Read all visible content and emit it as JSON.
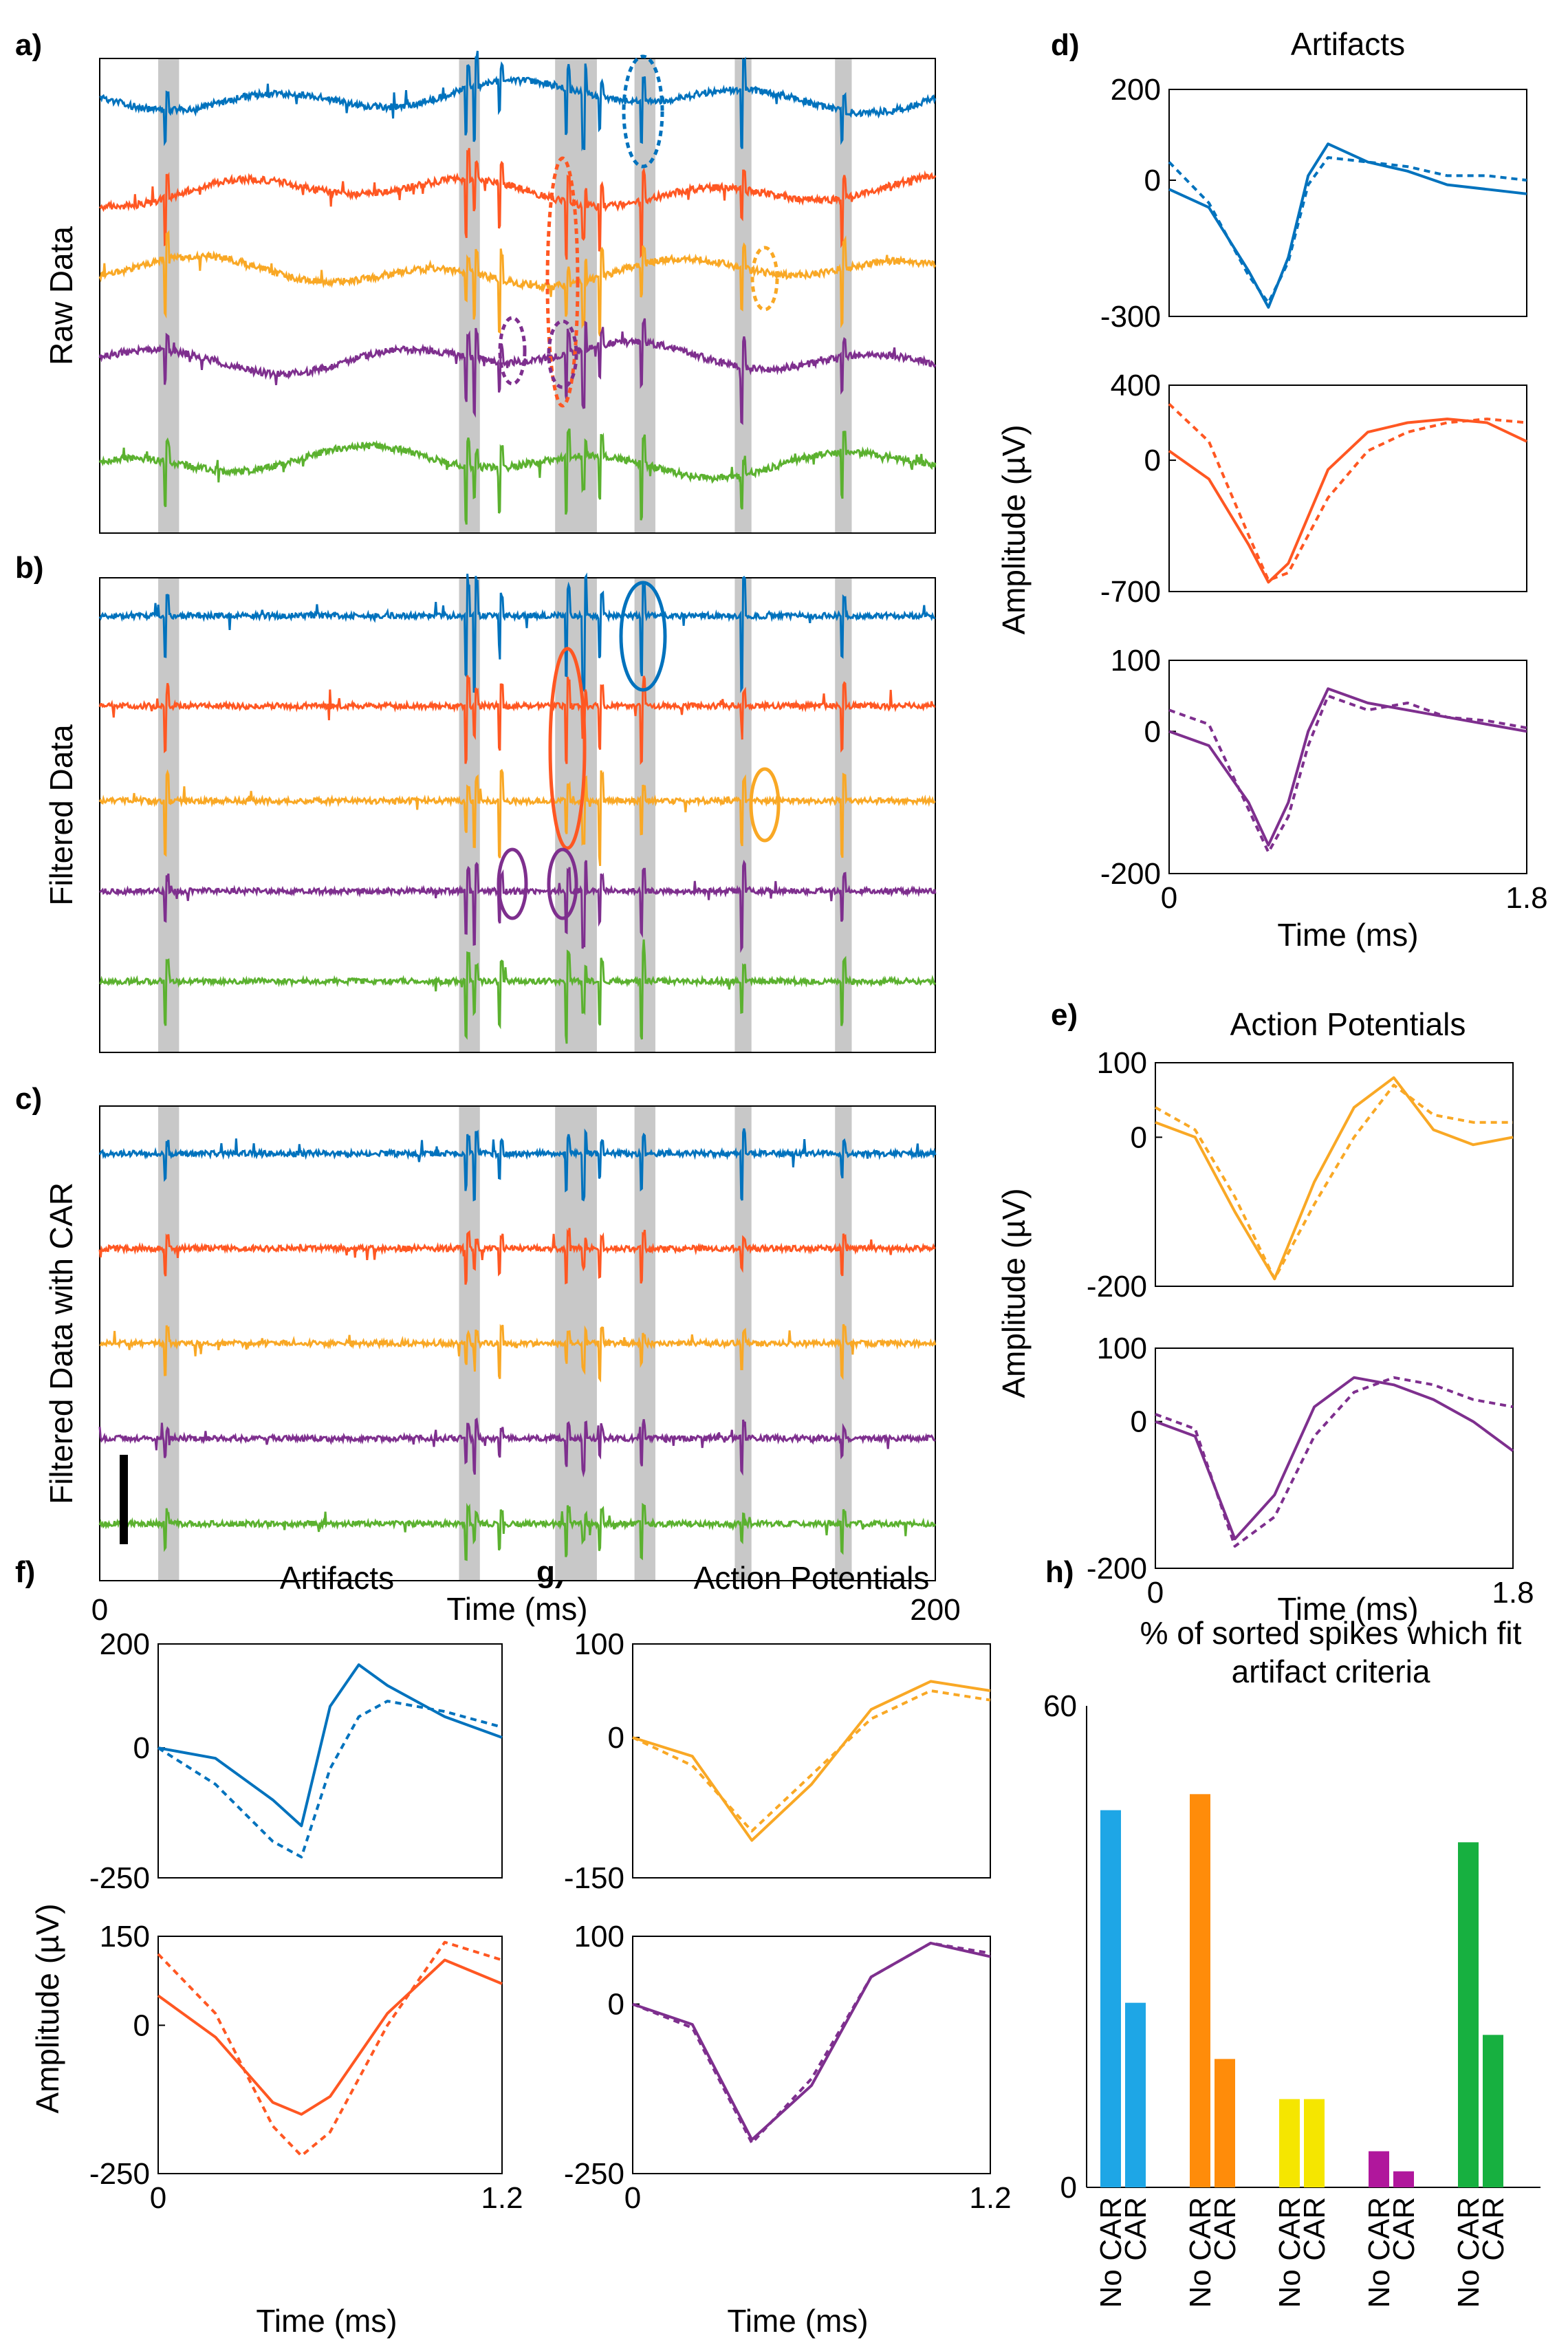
{
  "figure": {
    "panel_letters": [
      "a)",
      "b)",
      "c)",
      "d)",
      "e)",
      "f)",
      "g)",
      "h)"
    ],
    "time_axis": {
      "label": "Time (ms)",
      "min": "0",
      "max": "200"
    },
    "panel_ylabels": {
      "a": "Raw Data",
      "b": "Filtered Data",
      "c": "Filtered Data with CAR"
    },
    "amplitude_label": "Amplitude (µV)",
    "titles": {
      "d": "Artifacts",
      "e": "Action Potentials",
      "f": "Artifacts",
      "g": "Action Potentials",
      "h": "% of sorted spikes which fit artifact criteria"
    },
    "waveform_time_label": "Time (ms)"
  },
  "colors": {
    "blue": "#0072bd",
    "orange": "#ff5722",
    "yellow": "#f9a825",
    "purple": "#7e2f8e",
    "green": "#5bb12f",
    "shade": "#c8c8c8"
  },
  "chart_data": [
    {
      "id": "traces",
      "type": "line",
      "panels": [
        "a",
        "b",
        "c"
      ],
      "xlabel": "Time (ms)",
      "xlim": [
        0,
        200
      ],
      "channels": [
        "blue",
        "orange",
        "yellow",
        "purple",
        "green"
      ],
      "shaded_intervals_ms": [
        [
          14,
          19
        ],
        [
          86,
          91
        ],
        [
          109,
          119
        ],
        [
          128,
          133
        ],
        [
          152,
          156
        ],
        [
          176,
          180
        ]
      ],
      "scale_bar": true
    },
    {
      "id": "d",
      "type": "line",
      "title": "Artifacts",
      "xlabel": "Time (ms)",
      "ylabel": "Amplitude (µV)",
      "xlim": [
        0,
        1.8
      ],
      "x_ticks": [
        "0",
        "1.8"
      ],
      "subplots": [
        {
          "color": "blue",
          "yticks": [
            "200",
            "0",
            "-300"
          ],
          "ylim": [
            -300,
            200
          ],
          "x": [
            0,
            0.2,
            0.4,
            0.5,
            0.6,
            0.7,
            0.8,
            1.0,
            1.2,
            1.4,
            1.6,
            1.8
          ],
          "solid": [
            -20,
            -60,
            -200,
            -280,
            -170,
            10,
            80,
            40,
            20,
            -10,
            -20,
            -30
          ],
          "dashed": [
            40,
            -50,
            -210,
            -270,
            -180,
            -10,
            50,
            40,
            30,
            10,
            10,
            0
          ]
        },
        {
          "color": "orange",
          "yticks": [
            "400",
            "0",
            "-700"
          ],
          "ylim": [
            -700,
            400
          ],
          "x": [
            0,
            0.2,
            0.4,
            0.5,
            0.6,
            0.7,
            0.8,
            1.0,
            1.2,
            1.4,
            1.6,
            1.8
          ],
          "solid": [
            50,
            -100,
            -450,
            -650,
            -550,
            -300,
            -50,
            150,
            200,
            220,
            200,
            100
          ],
          "dashed": [
            300,
            100,
            -400,
            -640,
            -600,
            -400,
            -200,
            50,
            150,
            200,
            220,
            200
          ]
        },
        {
          "color": "purple",
          "yticks": [
            "100",
            "0",
            "-200"
          ],
          "ylim": [
            -200,
            100
          ],
          "x": [
            0,
            0.2,
            0.4,
            0.5,
            0.6,
            0.7,
            0.8,
            1.0,
            1.2,
            1.4,
            1.6,
            1.8
          ],
          "solid": [
            0,
            -20,
            -100,
            -160,
            -100,
            0,
            60,
            40,
            30,
            20,
            10,
            0
          ],
          "dashed": [
            30,
            10,
            -110,
            -170,
            -120,
            -20,
            50,
            30,
            40,
            20,
            15,
            5
          ]
        }
      ]
    },
    {
      "id": "e",
      "type": "line",
      "title": "Action Potentials",
      "xlabel": "Time (ms)",
      "ylabel": "Amplitude (µV)",
      "xlim": [
        0,
        1.8
      ],
      "x_ticks": [
        "0",
        "1.8"
      ],
      "subplots": [
        {
          "color": "yellow",
          "yticks": [
            "100",
            "0",
            "-200"
          ],
          "ylim": [
            -200,
            100
          ],
          "x": [
            0,
            0.2,
            0.4,
            0.6,
            0.8,
            1.0,
            1.2,
            1.4,
            1.6,
            1.8
          ],
          "solid": [
            20,
            0,
            -100,
            -190,
            -60,
            40,
            80,
            10,
            -10,
            0
          ],
          "dashed": [
            40,
            10,
            -80,
            -190,
            -90,
            0,
            70,
            30,
            20,
            20
          ]
        },
        {
          "color": "purple",
          "yticks": [
            "100",
            "0",
            "-200"
          ],
          "ylim": [
            -200,
            100
          ],
          "x": [
            0,
            0.2,
            0.4,
            0.6,
            0.8,
            1.0,
            1.2,
            1.4,
            1.6,
            1.8
          ],
          "solid": [
            0,
            -20,
            -160,
            -100,
            20,
            60,
            50,
            30,
            0,
            -40
          ],
          "dashed": [
            10,
            -10,
            -170,
            -130,
            -20,
            40,
            60,
            50,
            30,
            20
          ]
        }
      ]
    },
    {
      "id": "f",
      "type": "line",
      "title": "Artifacts",
      "xlabel": "Time (ms)",
      "ylabel": "Amplitude (µV)",
      "xlim": [
        0,
        1.2
      ],
      "x_ticks": [
        "0",
        "1.2"
      ],
      "subplots": [
        {
          "color": "blue",
          "yticks": [
            "200",
            "0",
            "-250"
          ],
          "ylim": [
            -250,
            200
          ],
          "x": [
            0,
            0.2,
            0.4,
            0.5,
            0.6,
            0.7,
            0.8,
            1.0,
            1.2
          ],
          "solid": [
            0,
            -20,
            -100,
            -150,
            80,
            160,
            120,
            60,
            20
          ],
          "dashed": [
            0,
            -70,
            -180,
            -210,
            -40,
            60,
            90,
            70,
            40
          ]
        },
        {
          "color": "orange",
          "yticks": [
            "150",
            "0",
            "-250"
          ],
          "ylim": [
            -250,
            150
          ],
          "x": [
            0,
            0.2,
            0.4,
            0.5,
            0.6,
            0.8,
            1.0,
            1.2
          ],
          "solid": [
            50,
            -20,
            -130,
            -150,
            -120,
            20,
            110,
            70
          ],
          "dashed": [
            120,
            20,
            -170,
            -220,
            -180,
            0,
            140,
            110
          ]
        }
      ]
    },
    {
      "id": "g",
      "type": "line",
      "title": "Action Potentials",
      "xlabel": "Time (ms)",
      "ylabel": "",
      "xlim": [
        0,
        1.2
      ],
      "x_ticks": [
        "0",
        "1.2"
      ],
      "subplots": [
        {
          "color": "yellow",
          "yticks": [
            "100",
            "0",
            "-150"
          ],
          "ylim": [
            -150,
            100
          ],
          "x": [
            0,
            0.2,
            0.4,
            0.6,
            0.8,
            1.0,
            1.2
          ],
          "solid": [
            0,
            -20,
            -110,
            -50,
            30,
            60,
            50
          ],
          "dashed": [
            0,
            -30,
            -100,
            -40,
            20,
            50,
            40
          ]
        },
        {
          "color": "purple",
          "yticks": [
            "100",
            "0",
            "-250"
          ],
          "ylim": [
            -250,
            100
          ],
          "x": [
            0,
            0.2,
            0.4,
            0.6,
            0.8,
            1.0,
            1.2
          ],
          "solid": [
            0,
            -30,
            -200,
            -120,
            40,
            90,
            70
          ],
          "dashed": [
            0,
            -35,
            -205,
            -110,
            40,
            90,
            75
          ]
        }
      ]
    },
    {
      "id": "h",
      "type": "bar",
      "title": "% of sorted spikes which fit artifact criteria",
      "ylim": [
        0,
        60
      ],
      "yticks": [
        "0",
        "60"
      ],
      "groups": [
        {
          "color": "#1ea6e6",
          "bars": [
            {
              "label": "No CAR",
              "value": 47
            },
            {
              "label": "CAR",
              "value": 23
            }
          ]
        },
        {
          "color": "#ff8c0a",
          "bars": [
            {
              "label": "No CAR",
              "value": 49
            },
            {
              "label": "CAR",
              "value": 16
            }
          ]
        },
        {
          "color": "#f5e600",
          "bars": [
            {
              "label": "No CAR",
              "value": 11
            },
            {
              "label": "CAR",
              "value": 11
            }
          ]
        },
        {
          "color": "#b0179c",
          "bars": [
            {
              "label": "No CAR",
              "value": 4.5
            },
            {
              "label": "CAR",
              "value": 2
            }
          ]
        },
        {
          "color": "#17b040",
          "bars": [
            {
              "label": "No CAR",
              "value": 43
            },
            {
              "label": "CAR",
              "value": 19
            }
          ]
        }
      ]
    }
  ]
}
